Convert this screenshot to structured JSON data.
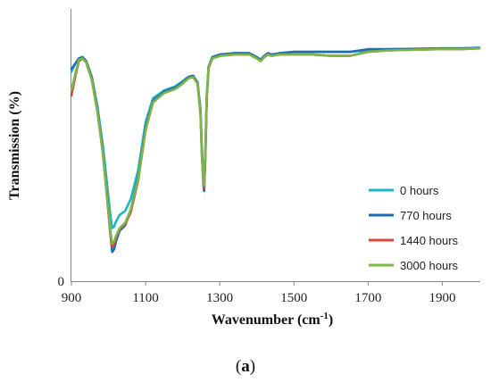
{
  "chart_data": {
    "type": "line",
    "title": "",
    "xlabel": "Wavenumber (cm",
    "xlabel_sup": "-1",
    "xlabel_end": ")",
    "ylabel": "Transmission (%)",
    "xlim": [
      900,
      2000
    ],
    "ylim": [
      0,
      100
    ],
    "x_ticks": [
      900,
      1100,
      1300,
      1500,
      1700,
      1900
    ],
    "x_tick_labels": [
      "900",
      "1100",
      "1300",
      "1500",
      "1700",
      "1900"
    ],
    "y_ticks": [
      0
    ],
    "y_tick_labels": [
      "0"
    ],
    "grid": false,
    "legend_position": "right",
    "series": [
      {
        "name": "0 hours",
        "color": "#22b5c8",
        "x": [
          900,
          910,
          920,
          930,
          940,
          955,
          970,
          985,
          995,
          1005,
          1010,
          1015,
          1020,
          1030,
          1045,
          1060,
          1080,
          1100,
          1120,
          1150,
          1180,
          1200,
          1215,
          1228,
          1240,
          1248,
          1252,
          1256,
          1258,
          1261,
          1265,
          1270,
          1280,
          1300,
          1340,
          1380,
          1400,
          1410,
          1420,
          1430,
          1440,
          1460,
          1500,
          1550,
          1600,
          1650,
          1700,
          1750,
          1800,
          1850,
          1900,
          1950,
          2000
        ],
        "y": [
          79,
          82,
          84,
          84.5,
          83,
          77,
          66,
          51,
          38,
          25,
          20,
          20.5,
          22.5,
          25,
          26.5,
          31,
          42,
          60,
          69,
          72,
          73.5,
          75.5,
          77,
          77.5,
          75,
          65,
          50,
          40,
          38,
          48,
          70,
          81,
          84.5,
          85.5,
          86,
          86,
          84.5,
          83.5,
          85,
          86,
          85.5,
          86,
          86.5,
          86.5,
          86.5,
          86.5,
          87,
          87.2,
          87.5,
          87.7,
          87.8,
          87.8,
          88
        ]
      },
      {
        "name": "770 hours",
        "color": "#1f6cb3",
        "x": [
          900,
          910,
          920,
          930,
          940,
          955,
          970,
          985,
          995,
          1005,
          1010,
          1015,
          1020,
          1030,
          1045,
          1060,
          1080,
          1100,
          1120,
          1150,
          1180,
          1200,
          1215,
          1228,
          1240,
          1248,
          1252,
          1256,
          1258,
          1261,
          1265,
          1270,
          1280,
          1300,
          1340,
          1380,
          1400,
          1410,
          1420,
          1430,
          1440,
          1460,
          1500,
          1550,
          1600,
          1650,
          1700,
          1750,
          1800,
          1850,
          1900,
          1950,
          2000
        ],
        "y": [
          80,
          82,
          84,
          84.5,
          83,
          77,
          65,
          49,
          34,
          18,
          11,
          12,
          15,
          19,
          21,
          27,
          39,
          58,
          68,
          71.5,
          73,
          75,
          77,
          77.5,
          75,
          64,
          48,
          36,
          34,
          46,
          69,
          81,
          84.5,
          85.5,
          86,
          86,
          84.5,
          83.5,
          85,
          86,
          85.5,
          86,
          86.5,
          86.5,
          86.5,
          86.5,
          87.5,
          87.5,
          87.6,
          87.7,
          87.8,
          87.8,
          88
        ]
      },
      {
        "name": "1440 hours",
        "color": "#d9443c",
        "x": [
          900,
          910,
          920,
          930,
          940,
          955,
          970,
          985,
          995,
          1005,
          1010,
          1015,
          1020,
          1030,
          1045,
          1060,
          1080,
          1100,
          1120,
          1150,
          1180,
          1200,
          1215,
          1228,
          1240,
          1248,
          1252,
          1256,
          1258,
          1261,
          1265,
          1270,
          1280,
          1300,
          1340,
          1380,
          1400,
          1410,
          1420,
          1430,
          1440,
          1460,
          1500,
          1550,
          1600,
          1650,
          1700,
          1750,
          1800,
          1850,
          1900,
          1950,
          2000
        ],
        "y": [
          70,
          77,
          83,
          84,
          82.5,
          76,
          64,
          48,
          33,
          18,
          13,
          14,
          16.5,
          19.5,
          21.5,
          26,
          38,
          57,
          67.5,
          71,
          72.5,
          74.5,
          76.5,
          77,
          74.5,
          63,
          47,
          37,
          35,
          47,
          69,
          80.5,
          84,
          85,
          85.5,
          85.5,
          84,
          83,
          84.5,
          85.5,
          85,
          85.5,
          85.5,
          85.5,
          85,
          85,
          86.5,
          87,
          87.2,
          87.4,
          87.5,
          87.5,
          87.8
        ]
      },
      {
        "name": "3000 hours",
        "color": "#7ab648",
        "x": [
          900,
          910,
          920,
          930,
          940,
          955,
          970,
          985,
          995,
          1005,
          1010,
          1015,
          1020,
          1030,
          1045,
          1060,
          1080,
          1100,
          1120,
          1150,
          1180,
          1200,
          1215,
          1228,
          1240,
          1248,
          1252,
          1256,
          1258,
          1261,
          1265,
          1270,
          1280,
          1300,
          1340,
          1380,
          1400,
          1410,
          1420,
          1430,
          1440,
          1460,
          1500,
          1550,
          1600,
          1650,
          1700,
          1750,
          1800,
          1850,
          1900,
          1950,
          2000
        ],
        "y": [
          72,
          78,
          83.5,
          84,
          82.5,
          76,
          64,
          48,
          33,
          19,
          14,
          15,
          17,
          20,
          22,
          27,
          38.5,
          57,
          67.5,
          71,
          72.5,
          74.5,
          76.5,
          77,
          74.5,
          63,
          47,
          38,
          36,
          48,
          70,
          81,
          84,
          85,
          85.5,
          85.5,
          84,
          83,
          84.5,
          85.5,
          85,
          85.5,
          85.5,
          85.5,
          85,
          85,
          86.5,
          87,
          87.2,
          87.4,
          87.5,
          87.5,
          87.8
        ]
      }
    ]
  },
  "panel_label": {
    "open": "(",
    "letter": "a",
    "close": ")"
  }
}
